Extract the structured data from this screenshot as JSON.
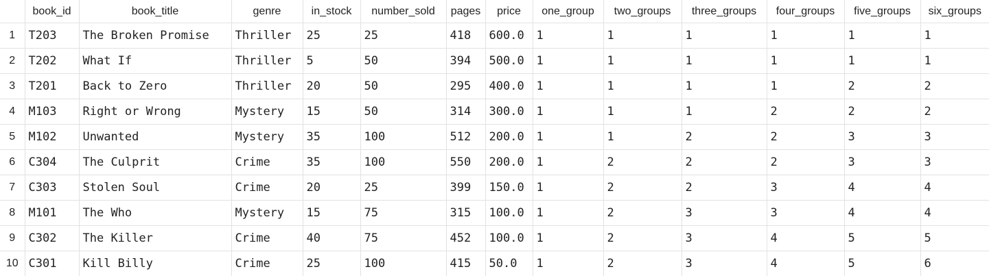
{
  "table": {
    "columns": [
      "book_id",
      "book_title",
      "genre",
      "in_stock",
      "number_sold",
      "pages",
      "price",
      "one_group",
      "two_groups",
      "three_groups",
      "four_groups",
      "five_groups",
      "six_groups"
    ],
    "rows": [
      {
        "index": "1",
        "cells": [
          "T203",
          "The Broken Promise",
          "Thriller",
          "25",
          "25",
          "418",
          "600.0",
          "1",
          "1",
          "1",
          "1",
          "1",
          "1"
        ]
      },
      {
        "index": "2",
        "cells": [
          "T202",
          "What If",
          "Thriller",
          "5",
          "50",
          "394",
          "500.0",
          "1",
          "1",
          "1",
          "1",
          "1",
          "1"
        ]
      },
      {
        "index": "3",
        "cells": [
          "T201",
          "Back to Zero",
          "Thriller",
          "20",
          "50",
          "295",
          "400.0",
          "1",
          "1",
          "1",
          "1",
          "2",
          "2"
        ]
      },
      {
        "index": "4",
        "cells": [
          "M103",
          "Right or Wrong",
          "Mystery",
          "15",
          "50",
          "314",
          "300.0",
          "1",
          "1",
          "1",
          "2",
          "2",
          "2"
        ]
      },
      {
        "index": "5",
        "cells": [
          "M102",
          "Unwanted",
          "Mystery",
          "35",
          "100",
          "512",
          "200.0",
          "1",
          "1",
          "2",
          "2",
          "3",
          "3"
        ]
      },
      {
        "index": "6",
        "cells": [
          "C304",
          "The Culprit",
          "Crime",
          "35",
          "100",
          "550",
          "200.0",
          "1",
          "2",
          "2",
          "2",
          "3",
          "3"
        ]
      },
      {
        "index": "7",
        "cells": [
          "C303",
          "Stolen Soul",
          "Crime",
          "20",
          "25",
          "399",
          "150.0",
          "1",
          "2",
          "2",
          "3",
          "4",
          "4"
        ]
      },
      {
        "index": "8",
        "cells": [
          "M101",
          "The Who",
          "Mystery",
          "15",
          "75",
          "315",
          "100.0",
          "1",
          "2",
          "3",
          "3",
          "4",
          "4"
        ]
      },
      {
        "index": "9",
        "cells": [
          "C302",
          "The Killer",
          "Crime",
          "40",
          "75",
          "452",
          "100.0",
          "1",
          "2",
          "3",
          "4",
          "5",
          "5"
        ]
      },
      {
        "index": "10",
        "cells": [
          "C301",
          "Kill Billy",
          "Crime",
          "25",
          "100",
          "415",
          "50.0",
          "1",
          "2",
          "3",
          "4",
          "5",
          "6"
        ]
      }
    ]
  }
}
